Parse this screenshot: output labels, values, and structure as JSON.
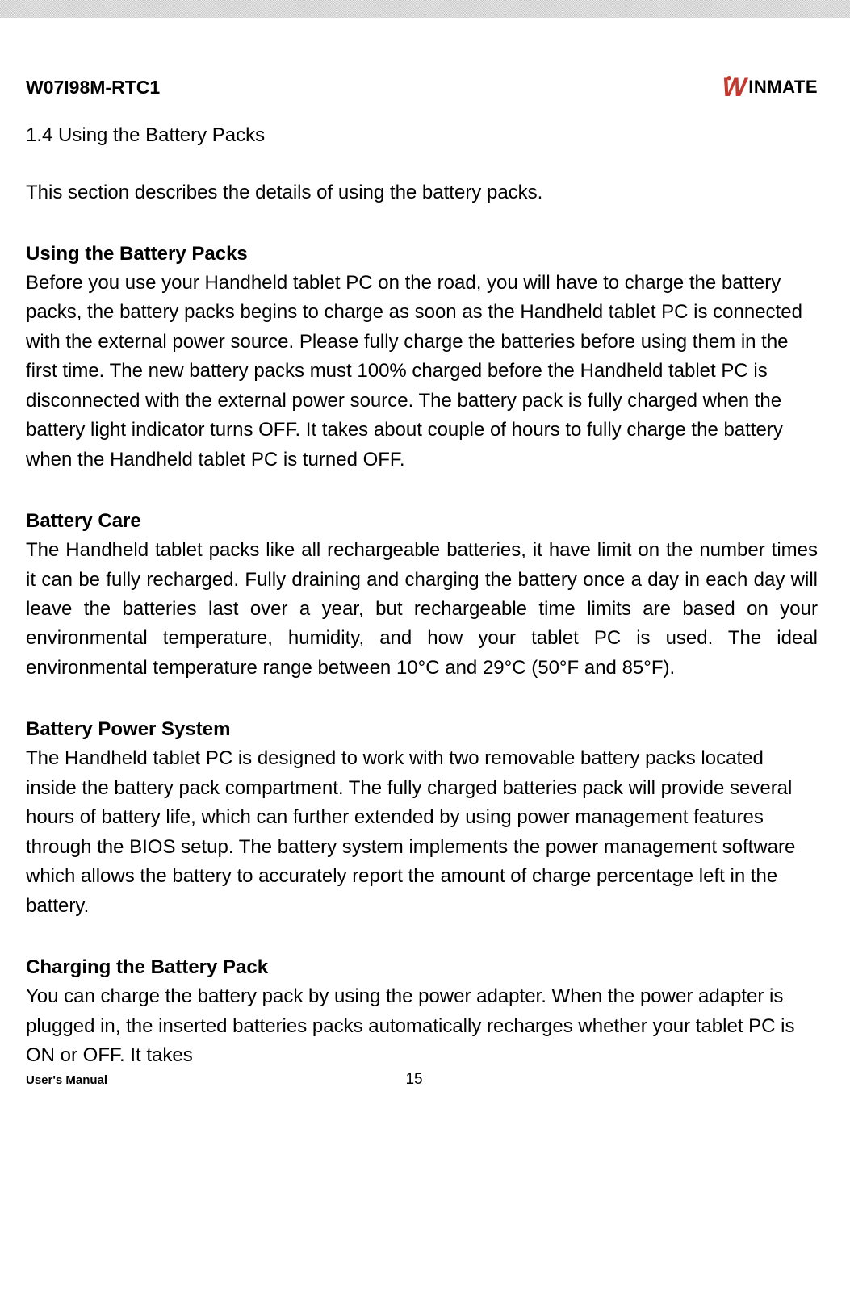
{
  "band": {
    "height": 22
  },
  "header": {
    "model": "W07I98M-RTC1",
    "logo": {
      "w": "W",
      "rest": "INMATE"
    }
  },
  "section_title": "1.4 Using the Battery Packs",
  "intro": "This section describes the details of using the battery packs.",
  "sections": {
    "using": {
      "title": "Using the Battery Packs",
      "body": "Before you use your Handheld tablet PC on the road, you will have to charge the battery packs, the battery packs begins to charge as soon as the Handheld  tablet PC is connected with the external power source. Please fully charge the batteries before using them in the first time. The new battery packs must 100% charged before the Handheld tablet PC is disconnected with the external power source. The battery pack is fully charged when the battery light indicator turns OFF. It takes about couple of hours to fully charge the battery when the Handheld tablet PC is turned OFF."
    },
    "care": {
      "title": "Battery Care",
      "body": "The Handheld tablet packs like all rechargeable batteries, it have limit on the number times it can be fully recharged. Fully draining and charging the battery once a day in each day will leave the batteries last over a year, but rechargeable time limits are based on your environmental temperature, humidity, and how your tablet PC is used. The ideal environmental temperature range between 10°C and 29°C (50°F and 85°F)."
    },
    "power": {
      "title": "Battery Power System",
      "body": "The Handheld tablet PC is designed to work with two removable battery packs located inside the battery pack compartment. The fully charged batteries pack will provide several hours of battery life, which can further extended by using power management features through the BIOS setup. The battery system implements the power management software which allows the battery to accurately report the amount of charge percentage left in the battery."
    },
    "charging": {
      "title": "Charging the Battery Pack",
      "body": "You can charge the battery pack by using the power adapter. When the power adapter is plugged in, the inserted batteries packs automatically recharges whether your tablet PC is ON or OFF. It takes"
    }
  },
  "footer": {
    "left": "User's Manual",
    "page": "15"
  },
  "colors": {
    "text": "#000000",
    "logo_red": "#c43a2f",
    "background": "#ffffff"
  },
  "typography": {
    "body_fontsize": 24,
    "title_fontsize": 24,
    "model_fontsize": 23,
    "footer_left_fontsize": 15,
    "footer_page_fontsize": 19
  }
}
